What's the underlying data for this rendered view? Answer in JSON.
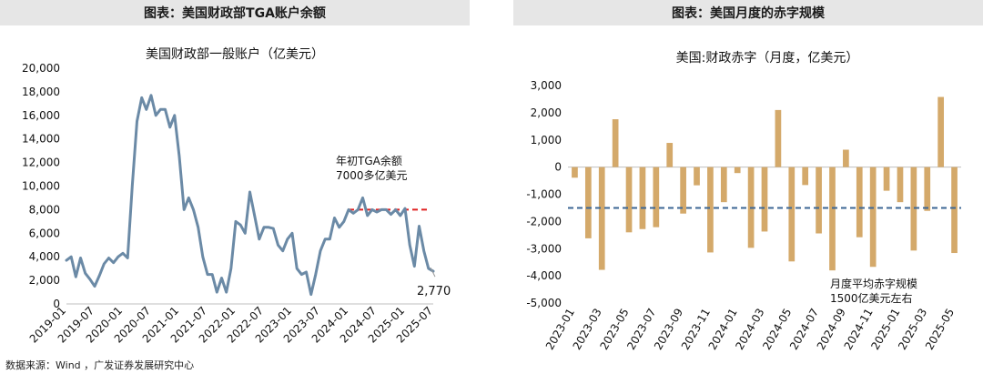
{
  "left_header": "图表：美国财政部TGA账户余额",
  "right_header": "图表：美国月度的赤字规模",
  "source": "数据来源：Wind ，广发证券发展研究中心",
  "colors": {
    "tga_line": "#6b8aa6",
    "bar": "#d4a96a",
    "avg_line": "#3c6694",
    "ref_line": "#e02020"
  },
  "chart_data": [
    {
      "type": "line",
      "title": "美国财政部一般账户（亿美元）",
      "ylim": [
        0,
        20000
      ],
      "yticks": [
        "0",
        "2,000",
        "4,000",
        "6,000",
        "8,000",
        "10,000",
        "12,000",
        "14,000",
        "16,000",
        "18,000",
        "20,000"
      ],
      "xlim": [
        "2019-01",
        "2025-07"
      ],
      "xticks": [
        "2019-01",
        "2019-07",
        "2020-01",
        "2020-07",
        "2021-01",
        "2021-07",
        "2022-01",
        "2022-07",
        "2023-01",
        "2023-07",
        "2024-01",
        "2024-07",
        "2025-01",
        "2025-07"
      ],
      "series": [
        {
          "x": [
            "2019-01",
            "2019-02",
            "2019-03",
            "2019-04",
            "2019-05",
            "2019-06",
            "2019-07",
            "2019-08",
            "2019-09",
            "2019-10",
            "2019-11",
            "2019-12",
            "2020-01",
            "2020-02",
            "2020-03",
            "2020-04",
            "2020-05",
            "2020-06",
            "2020-07",
            "2020-08",
            "2020-09",
            "2020-10",
            "2020-11",
            "2020-12",
            "2021-01",
            "2021-02",
            "2021-03",
            "2021-04",
            "2021-05",
            "2021-06",
            "2021-07",
            "2021-08",
            "2021-09",
            "2021-10",
            "2021-11",
            "2021-12",
            "2022-01",
            "2022-02",
            "2022-03",
            "2022-04",
            "2022-05",
            "2022-06",
            "2022-07",
            "2022-08",
            "2022-09",
            "2022-10",
            "2022-11",
            "2022-12",
            "2023-01",
            "2023-02",
            "2023-03",
            "2023-04",
            "2023-05",
            "2023-06",
            "2023-07",
            "2023-08",
            "2023-09",
            "2023-10",
            "2023-11",
            "2023-12",
            "2024-01",
            "2024-02",
            "2024-03",
            "2024-04",
            "2024-05",
            "2024-06",
            "2024-07",
            "2024-08",
            "2024-09",
            "2024-10",
            "2024-11",
            "2024-12",
            "2025-01",
            "2025-02",
            "2025-03",
            "2025-04",
            "2025-05",
            "2025-06",
            "2025-07"
          ],
          "values": [
            3700,
            4000,
            2300,
            3900,
            2600,
            2100,
            1500,
            2400,
            3400,
            3900,
            3500,
            4000,
            4300,
            3900,
            10000,
            15500,
            17500,
            16500,
            17700,
            16000,
            16500,
            16500,
            15000,
            16000,
            12500,
            8000,
            9000,
            8000,
            6500,
            4000,
            2500,
            2500,
            1000,
            2200,
            1000,
            3000,
            7000,
            6700,
            6000,
            9500,
            7500,
            5500,
            6500,
            6500,
            6400,
            5000,
            4500,
            5500,
            6000,
            3000,
            2500,
            2700,
            800,
            2500,
            4500,
            5500,
            5500,
            7300,
            6500,
            7000,
            8000,
            7700,
            8000,
            9000,
            7500,
            8000,
            7800,
            8000,
            8000,
            7600,
            8000,
            7500,
            8100,
            5000,
            3200,
            6600,
            4500,
            3000,
            2770
          ]
        }
      ],
      "ref_value": 8000,
      "annotation": [
        "年初TGA余额",
        "7000多亿美元"
      ],
      "end_label": "2,770"
    },
    {
      "type": "bar",
      "title": "美国:财政赤字（月度，亿美元）",
      "ylim": [
        -5000,
        3000
      ],
      "yticks": [
        "-5,000",
        "-4,000",
        "-3,000",
        "-2,000",
        "-1,000",
        "0",
        "1,000",
        "2,000",
        "3,000"
      ],
      "categories": [
        "2023-01",
        "2023-02",
        "2023-03",
        "2023-04",
        "2023-05",
        "2023-06",
        "2023-07",
        "2023-08",
        "2023-09",
        "2023-10",
        "2023-11",
        "2023-12",
        "2024-01",
        "2024-02",
        "2024-03",
        "2024-04",
        "2024-05",
        "2024-06",
        "2024-07",
        "2024-08",
        "2024-09",
        "2024-10",
        "2024-11",
        "2024-12",
        "2025-01",
        "2025-02",
        "2025-03",
        "2025-04",
        "2025-05"
      ],
      "xticks": [
        "2023-01",
        "2023-03",
        "2023-05",
        "2023-07",
        "2023-09",
        "2023-11",
        "2024-01",
        "2024-03",
        "2024-05",
        "2024-07",
        "2024-09",
        "2024-11",
        "2025-01",
        "2025-03",
        "2025-05"
      ],
      "values": [
        -390,
        -2620,
        -3780,
        1760,
        -2400,
        -2280,
        -2210,
        890,
        -1710,
        -670,
        -3140,
        -1290,
        -220,
        -2970,
        -2370,
        2100,
        -3470,
        -660,
        -2440,
        -3800,
        640,
        -2580,
        -3670,
        -870,
        -1290,
        -3070,
        -1610,
        2580,
        -3160
      ],
      "avg_value": -1500,
      "annotation": [
        "月度平均赤字规模",
        "1500亿美元左右"
      ]
    }
  ]
}
